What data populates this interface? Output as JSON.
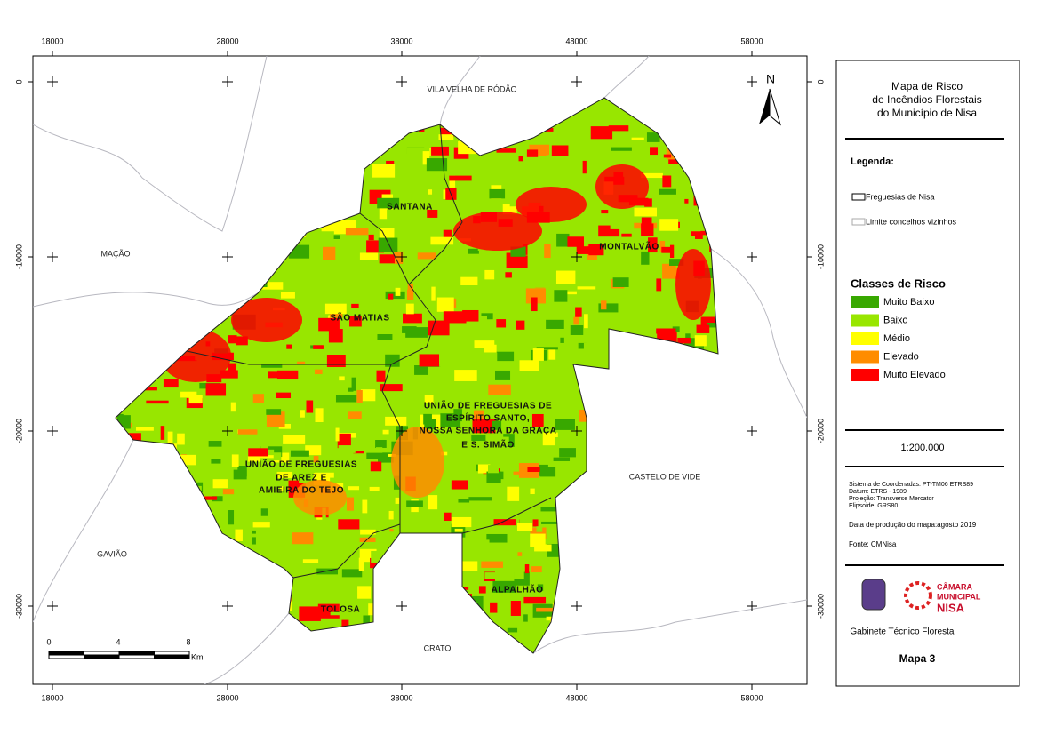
{
  "map": {
    "x_ticks": [
      18000,
      28000,
      38000,
      48000,
      58000
    ],
    "y_ticks": [
      0,
      -10000,
      -20000,
      -30000
    ],
    "place_labels": [
      "VILA VELHA DE RÓDÃO",
      "MAÇÃO",
      "GAVIÃO",
      "CRATO",
      "CASTELO DE VIDE"
    ],
    "parish_labels": [
      "SANTANA",
      "MONTALVÃO",
      "SÃO MATIAS",
      "UNIÃO DE FREGUESIAS DE",
      "ESPÍRITO SANTO,",
      "NOSSA SENHORA DA GRAÇA",
      "E S. SIMÃO",
      "UNIÃO DE FREGUESIAS",
      "DE AREZ E",
      "AMIEIRA DO TEJO",
      "ALPALHÃO",
      "TOLOSA"
    ],
    "north": "N",
    "scale_bar": {
      "labels": [
        "0",
        "4",
        "8"
      ],
      "unit": "Km"
    }
  },
  "legend": {
    "title": [
      "Mapa de Risco",
      "de Incêndios Florestais",
      "do Município de Nisa"
    ],
    "heading": "Legenda:",
    "boundaries": [
      "Freguesias de Nisa",
      "Limite concelhos vizinhos"
    ],
    "classes_title": "Classes de Risco",
    "classes": [
      {
        "name": "Muito Baixo",
        "color": "#38a800"
      },
      {
        "name": "Baixo",
        "color": "#98e600"
      },
      {
        "name": "Médio",
        "color": "#ffff00"
      },
      {
        "name": "Elevado",
        "color": "#ff8c00"
      },
      {
        "name": "Muito Elevado",
        "color": "#ff0000"
      }
    ],
    "scale": "1:200.000",
    "info": [
      "Sistema de Coordenadas: PT-TM06 ETRS89",
      "Datum:  ETRS - 1989",
      "Projeção: Transverse Mercator",
      "Elipsoide: GRS80"
    ],
    "date": "Data de produção do mapa:agosto 2019",
    "source": "Fonte: CMNisa",
    "logo": [
      "CÂMARA",
      "MUNICIPAL",
      "NISA"
    ],
    "office": "Gabinete Técnico Florestal",
    "map_number": "Mapa 3"
  }
}
